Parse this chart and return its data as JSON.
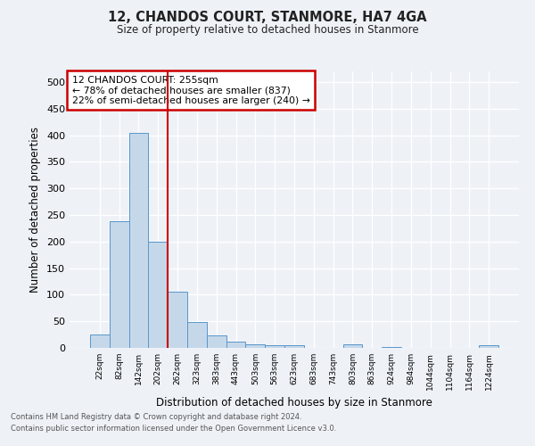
{
  "title": "12, CHANDOS COURT, STANMORE, HA7 4GA",
  "subtitle": "Size of property relative to detached houses in Stanmore",
  "xlabel": "Distribution of detached houses by size in Stanmore",
  "ylabel": "Number of detached properties",
  "bar_labels": [
    "22sqm",
    "82sqm",
    "142sqm",
    "202sqm",
    "262sqm",
    "323sqm",
    "383sqm",
    "443sqm",
    "503sqm",
    "563sqm",
    "623sqm",
    "683sqm",
    "743sqm",
    "803sqm",
    "863sqm",
    "924sqm",
    "984sqm",
    "1044sqm",
    "1104sqm",
    "1164sqm",
    "1224sqm"
  ],
  "bar_values": [
    25,
    238,
    405,
    200,
    105,
    48,
    23,
    12,
    7,
    5,
    5,
    0,
    0,
    6,
    0,
    2,
    0,
    0,
    0,
    0,
    5
  ],
  "bar_color": "#c5d8ea",
  "bar_edge_color": "#5a96c8",
  "vline_position": 3.5,
  "vline_color": "#cc0000",
  "ylim": [
    0,
    520
  ],
  "yticks": [
    0,
    50,
    100,
    150,
    200,
    250,
    300,
    350,
    400,
    450,
    500
  ],
  "annotation_title": "12 CHANDOS COURT: 255sqm",
  "annotation_line1": "← 78% of detached houses are smaller (837)",
  "annotation_line2": "22% of semi-detached houses are larger (240) →",
  "annotation_box_color": "#cc0000",
  "footer_line1": "Contains HM Land Registry data © Crown copyright and database right 2024.",
  "footer_line2": "Contains public sector information licensed under the Open Government Licence v3.0.",
  "background_color": "#eef2f7",
  "grid_color": "#ffffff"
}
